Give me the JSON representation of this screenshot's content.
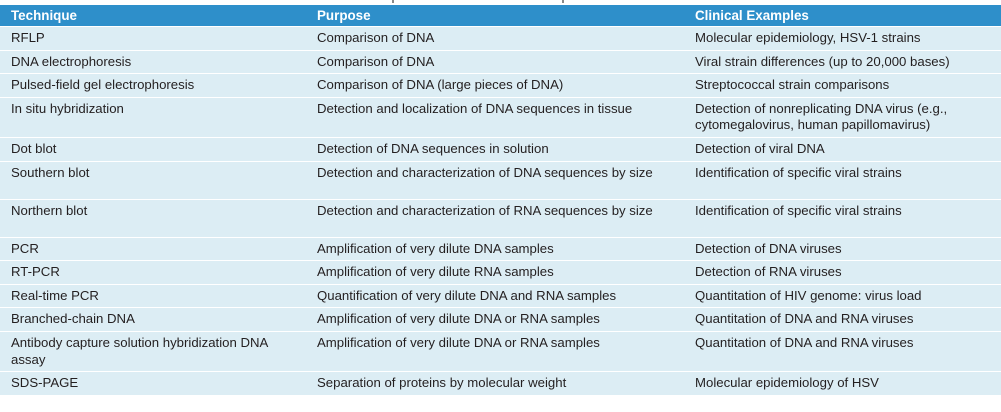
{
  "table": {
    "headers": [
      "Technique",
      "Purpose",
      "Clinical Examples"
    ],
    "rows": [
      [
        "RFLP",
        "Comparison of DNA",
        "Molecular epidemiology, HSV-1 strains"
      ],
      [
        "DNA electrophoresis",
        "Comparison of DNA",
        "Viral strain differences (up to 20,000 bases)"
      ],
      [
        "Pulsed-field gel electrophoresis",
        "Comparison of DNA (large pieces of DNA)",
        "Streptococcal strain comparisons"
      ],
      [
        "In situ hybridization",
        "Detection and localization of DNA sequences in tissue",
        "Detection of nonreplicating DNA virus (e.g., cytomegalovirus, human papillomavirus)"
      ],
      [
        "Dot blot",
        "Detection of DNA sequences in solution",
        "Detection of viral DNA"
      ],
      [
        "Southern blot",
        "Detection and characterization of DNA sequences by size",
        "Identification of specific viral strains"
      ],
      [
        "Northern blot",
        "Detection and characterization of RNA sequences by size",
        "Identification of specific viral strains"
      ],
      [
        "PCR",
        "Amplification of very dilute DNA samples",
        "Detection of DNA viruses"
      ],
      [
        "RT-PCR",
        "Amplification of very dilute RNA samples",
        "Detection of RNA viruses"
      ],
      [
        "Real-time PCR",
        "Quantification of very dilute DNA and RNA samples",
        "Quantitation of HIV genome: virus load"
      ],
      [
        "Branched-chain DNA",
        "Amplification of very dilute DNA or RNA samples",
        "Quantitation of DNA and RNA viruses"
      ],
      [
        "Antibody capture solution hybridization DNA assay",
        "Amplification of very dilute DNA or RNA samples",
        "Quantitation of DNA and RNA viruses"
      ],
      [
        "SDS-PAGE",
        "Separation of proteins by molecular weight",
        "Molecular epidemiology of HSV"
      ]
    ]
  }
}
